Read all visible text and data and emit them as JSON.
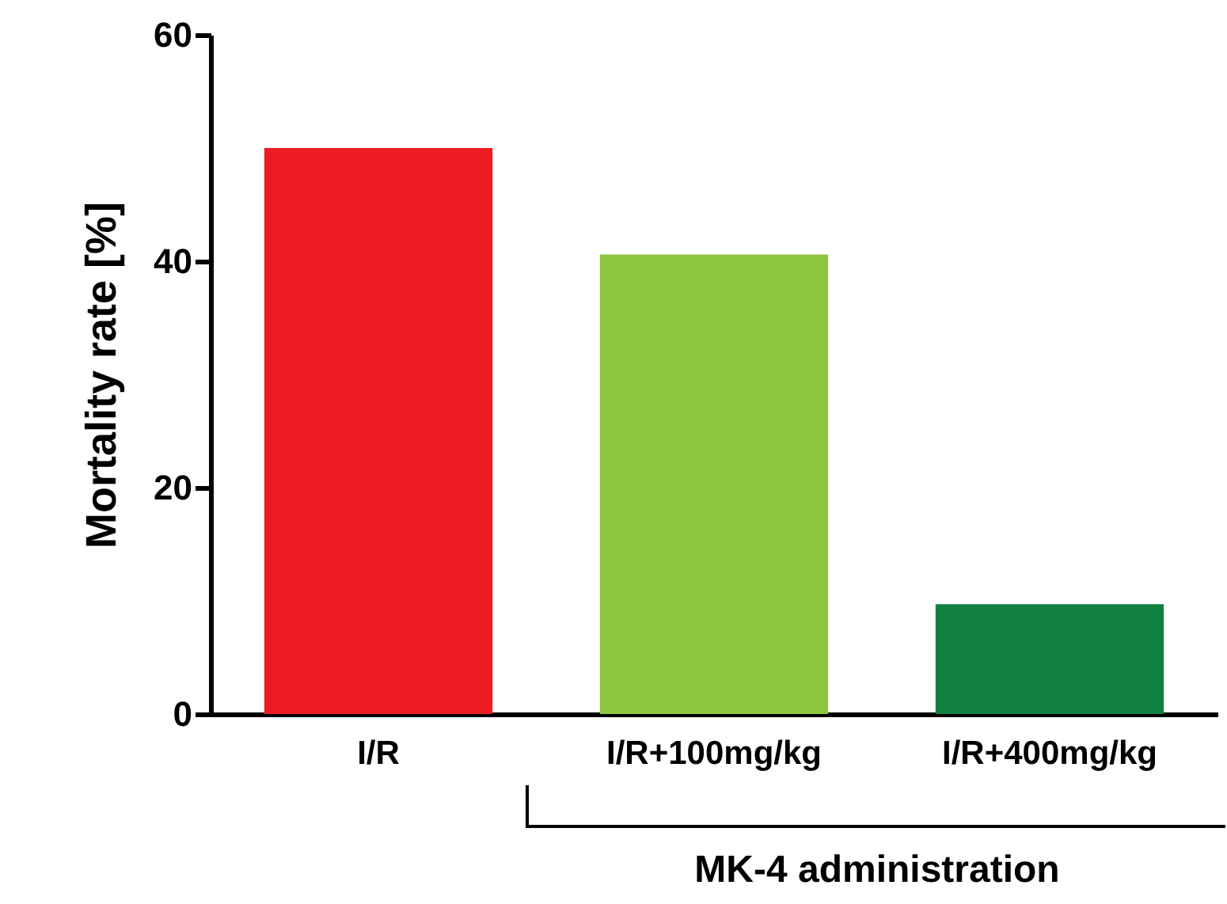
{
  "chart_data": {
    "type": "bar",
    "ylabel": "Mortality rate [%]",
    "categories": [
      "I/R",
      "I/R+100mg/kg",
      "I/R+400mg/kg"
    ],
    "values": [
      50,
      40.6,
      9.7
    ],
    "colors": [
      "#ed1c24",
      "#8dc63f",
      "#0f8040"
    ],
    "ylim": [
      0,
      60
    ],
    "yticks": [
      0,
      20,
      40,
      60
    ],
    "grid": false,
    "annotations": [
      "MK-4 administration"
    ]
  }
}
